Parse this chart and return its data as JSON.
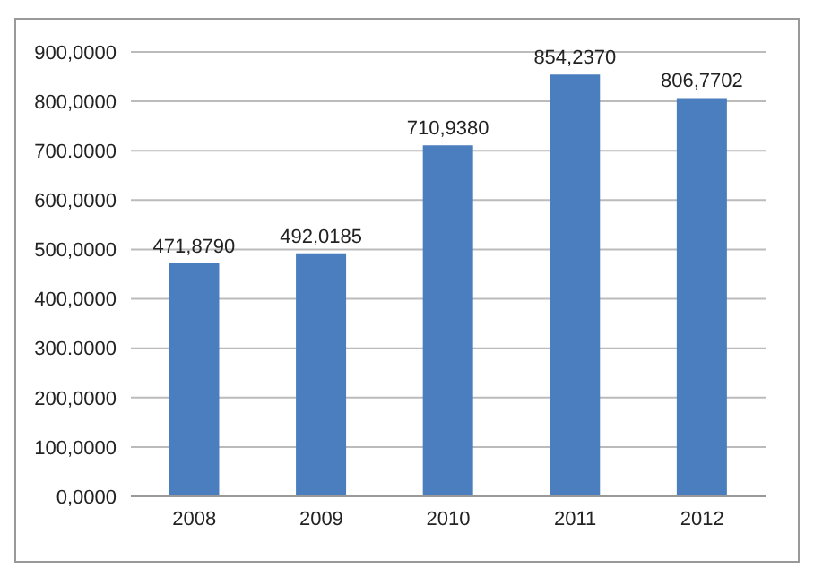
{
  "chart_data": {
    "type": "bar",
    "categories": [
      "2008",
      "2009",
      "2010",
      "2011",
      "2012"
    ],
    "values": [
      471.879,
      492.0185,
      710.938,
      854.237,
      806.7702
    ],
    "value_labels": [
      "471,8790",
      "492,0185",
      "710,9380",
      "854,2370",
      "806,7702"
    ],
    "color": "#4a7ebf",
    "ylim": [
      0,
      900
    ],
    "yticks": [
      {
        "value": 0,
        "label": "0,0000"
      },
      {
        "value": 100,
        "label": "100,0000"
      },
      {
        "value": 200,
        "label": "200,0000"
      },
      {
        "value": 300,
        "label": "300.0000"
      },
      {
        "value": 400,
        "label": "400,0000"
      },
      {
        "value": 500,
        "label": "500,0000"
      },
      {
        "value": 600,
        "label": "600,0000"
      },
      {
        "value": 700,
        "label": "700.0000"
      },
      {
        "value": 800,
        "label": "800,0000"
      },
      {
        "value": 900,
        "label": "900,0000"
      }
    ],
    "grid": "y"
  }
}
